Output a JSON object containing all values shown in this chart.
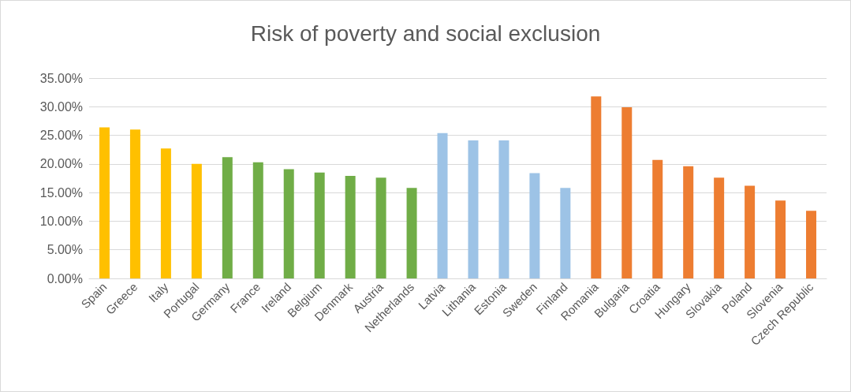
{
  "chart_data": {
    "type": "bar",
    "title": "Risk of poverty and social exclusion",
    "categories": [
      "Spain",
      "Greece",
      "Italy",
      "Portugal",
      "Germany",
      "France",
      "Ireland",
      "Belgium",
      "Denmark",
      "Austria",
      "Netherlands",
      "Latvia",
      "Lithania",
      "Estonia",
      "Sweden",
      "Finland",
      "Romania",
      "Bulgaria",
      "Croatia",
      "Hungary",
      "Slovakia",
      "Poland",
      "Slovenia",
      "Czech Republic"
    ],
    "values": [
      26.4,
      26.0,
      22.7,
      20.0,
      21.2,
      20.3,
      19.1,
      18.5,
      17.9,
      17.6,
      15.8,
      25.4,
      24.1,
      24.1,
      18.4,
      15.8,
      31.8,
      29.9,
      20.7,
      19.6,
      17.6,
      16.2,
      13.6,
      11.8
    ],
    "colors": [
      "#ffc000",
      "#ffc000",
      "#ffc000",
      "#ffc000",
      "#70ad47",
      "#70ad47",
      "#70ad47",
      "#70ad47",
      "#70ad47",
      "#70ad47",
      "#70ad47",
      "#9dc3e6",
      "#9dc3e6",
      "#9dc3e6",
      "#9dc3e6",
      "#9dc3e6",
      "#ed7d31",
      "#ed7d31",
      "#ed7d31",
      "#ed7d31",
      "#ed7d31",
      "#ed7d31",
      "#ed7d31",
      "#ed7d31"
    ],
    "ylim": [
      0,
      35
    ],
    "yticks": [
      {
        "value": 0,
        "label": "0.00%"
      },
      {
        "value": 5,
        "label": "5.00%"
      },
      {
        "value": 10,
        "label": "10.00%"
      },
      {
        "value": 15,
        "label": "15.00%"
      },
      {
        "value": 20,
        "label": "20.00%"
      },
      {
        "value": 25,
        "label": "25.00%"
      },
      {
        "value": 30,
        "label": "30.00%"
      },
      {
        "value": 35,
        "label": "35.00%"
      }
    ],
    "grid": "y"
  }
}
